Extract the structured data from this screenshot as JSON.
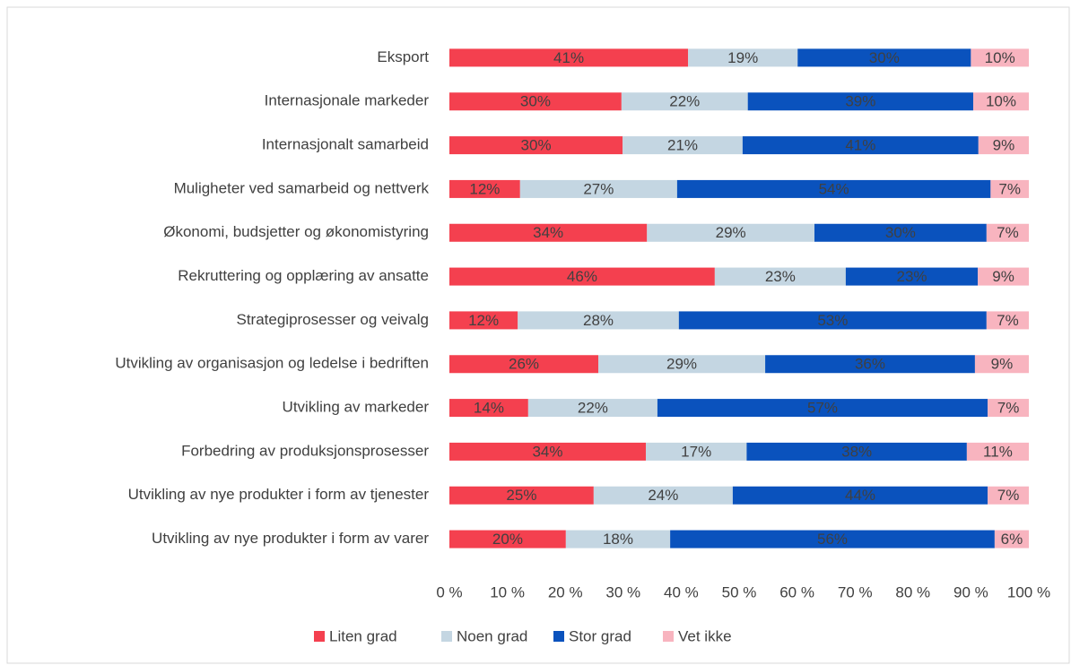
{
  "chart_data": {
    "type": "stacked-bar-horizontal",
    "categories": [
      "Eksport",
      "Internasjonale markeder",
      "Internasjonalt samarbeid",
      "Muligheter ved samarbeid og nettverk",
      "Økonomi, budsjetter og økonomistyring",
      "Rekruttering og opplæring av ansatte",
      "Strategiprosesser og veivalg",
      "Utvikling av organisasjon og ledelse i bedriften",
      "Utvikling av markeder",
      "Forbedring av produksjonsprosesser",
      "Utvikling av nye produkter i form av tjenester",
      "Utvikling av nye produkter i form av varer"
    ],
    "series": [
      {
        "name": "Liten grad",
        "color": "#f4404f",
        "values": [
          41.2,
          29.7,
          29.9,
          12.2,
          34.1,
          45.8,
          11.8,
          25.7,
          13.6,
          33.9,
          24.9,
          20.1
        ],
        "value_labels": [
          "41%",
          "30%",
          "30%",
          "12%",
          "34%",
          "46%",
          "12%",
          "26%",
          "14%",
          "34%",
          "25%",
          "20%"
        ]
      },
      {
        "name": "Noen grad",
        "color": "#c4d6e2",
        "values": [
          18.9,
          21.8,
          20.7,
          27.1,
          28.9,
          22.6,
          27.8,
          28.8,
          22.3,
          17.4,
          24.0,
          18.0
        ],
        "value_labels": [
          "19%",
          "22%",
          "21%",
          "27%",
          "29%",
          "23%",
          "28%",
          "29%",
          "22%",
          "17%",
          "24%",
          "18%"
        ]
      },
      {
        "name": "Stor grad",
        "color": "#0a52bd",
        "values": [
          29.9,
          38.9,
          40.7,
          54.1,
          29.7,
          22.8,
          53.1,
          36.2,
          57.0,
          38.0,
          44.0,
          56.0
        ],
        "value_labels": [
          "30%",
          "39%",
          "41%",
          "54%",
          "30%",
          "23%",
          "53%",
          "36%",
          "57%",
          "38%",
          "44%",
          "56%"
        ]
      },
      {
        "name": "Vet ikke",
        "color": "#f8b4bf",
        "values": [
          10.0,
          9.6,
          8.7,
          6.6,
          7.3,
          8.8,
          7.3,
          9.3,
          7.1,
          10.7,
          7.1,
          5.9
        ],
        "value_labels": [
          "10%",
          "10%",
          "9%",
          "7%",
          "7%",
          "9%",
          "7%",
          "9%",
          "7%",
          "11%",
          "7%",
          "6%"
        ]
      }
    ],
    "xlim": [
      0,
      100
    ],
    "xticks": [
      {
        "value": 0,
        "label": "0 %"
      },
      {
        "value": 10,
        "label": "10 %"
      },
      {
        "value": 20,
        "label": "20 %"
      },
      {
        "value": 30,
        "label": "30 %"
      },
      {
        "value": 40,
        "label": "40 %"
      },
      {
        "value": 50,
        "label": "50 %"
      },
      {
        "value": 60,
        "label": "60 %"
      },
      {
        "value": 70,
        "label": "70 %"
      },
      {
        "value": 80,
        "label": "80 %"
      },
      {
        "value": 90,
        "label": "90 %"
      },
      {
        "value": 100,
        "label": "100 %"
      }
    ],
    "legend": "bottom"
  }
}
